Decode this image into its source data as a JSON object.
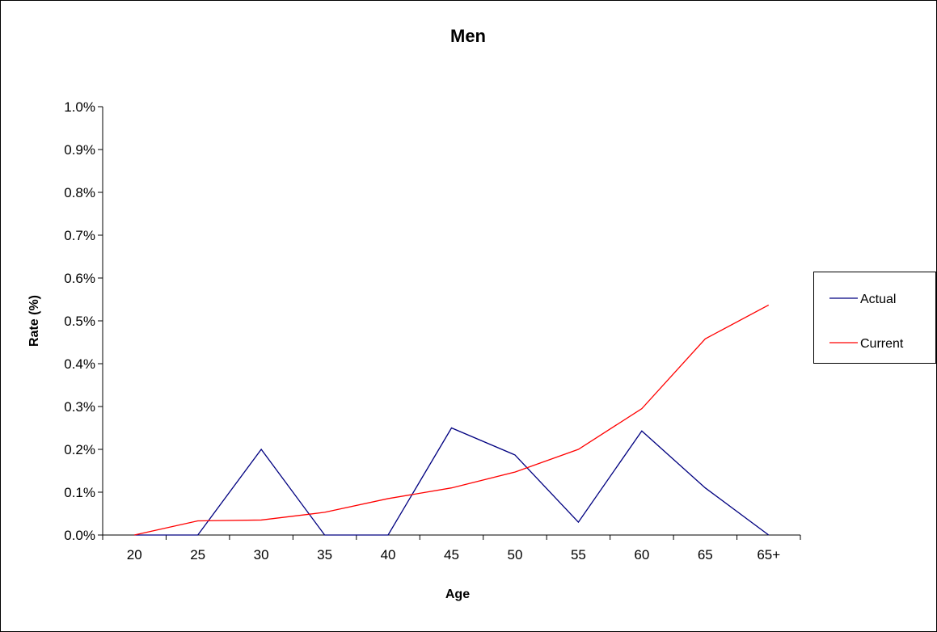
{
  "chart_data": {
    "type": "line",
    "title": "Men",
    "xlabel": "Age",
    "ylabel": "Rate (%)",
    "categories": [
      "20",
      "25",
      "30",
      "35",
      "40",
      "45",
      "50",
      "55",
      "60",
      "65",
      "65+"
    ],
    "ylim": [
      0,
      1.0
    ],
    "yticks": [
      0.0,
      0.1,
      0.2,
      0.3,
      0.4,
      0.5,
      0.6,
      0.7,
      0.8,
      0.9,
      1.0
    ],
    "ytick_labels": [
      "0.0%",
      "0.1%",
      "0.2%",
      "0.3%",
      "0.4%",
      "0.5%",
      "0.6%",
      "0.7%",
      "0.8%",
      "0.9%",
      "1.0%"
    ],
    "grid": false,
    "legend_position": "right",
    "series": [
      {
        "name": "Actual",
        "color": "#000080",
        "values": [
          0.0,
          0.0,
          0.2,
          0.0,
          0.0,
          0.25,
          0.187,
          0.03,
          0.243,
          0.11,
          0.0
        ]
      },
      {
        "name": "Current",
        "color": "#ff0000",
        "values": [
          0.0,
          0.033,
          0.035,
          0.053,
          0.085,
          0.11,
          0.147,
          0.2,
          0.295,
          0.458,
          0.537
        ]
      }
    ]
  }
}
